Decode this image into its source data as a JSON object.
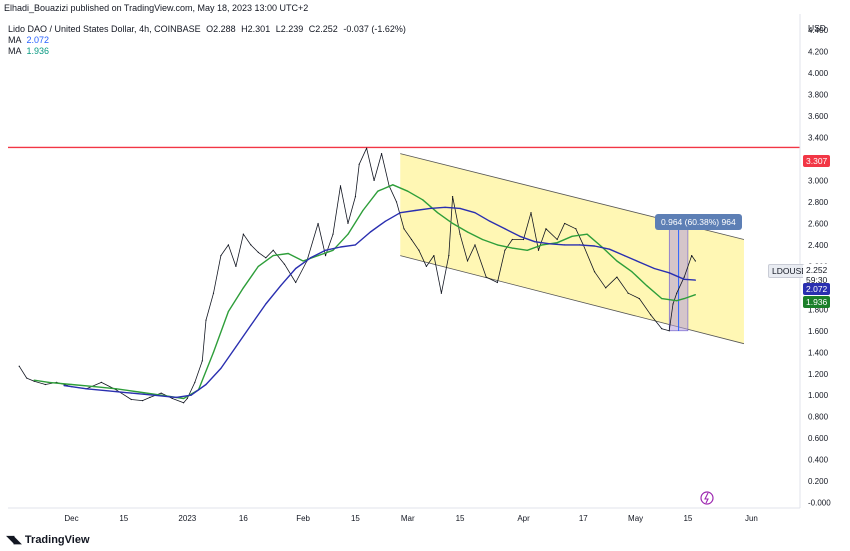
{
  "header": {
    "text": "Elhadi_Bouazizi published on TradingView.com, May 18, 2023 13:00 UTC+2"
  },
  "legend": {
    "title": "Lido DAO / United States Dollar, 4h, COINBASE",
    "open_label": "O",
    "open": "2.288",
    "high_label": "H",
    "high": "2.301",
    "low_label": "L",
    "low": "2.239",
    "close_label": "C",
    "close": "2.252",
    "change": "-0.037 (-1.62%)",
    "ma1_label": "MA",
    "ma1_value": "2.072",
    "ma2_label": "MA",
    "ma2_value": "1.936"
  },
  "price_axis": {
    "currency": "USD",
    "ticks": [
      "4.400",
      "4.200",
      "4.000",
      "3.800",
      "3.600",
      "3.400",
      "3.200",
      "3.000",
      "2.800",
      "2.600",
      "2.400",
      "2.200",
      "2.000",
      "1.800",
      "1.600",
      "1.400",
      "1.200",
      "1.000",
      "0.800",
      "0.600",
      "0.400",
      "0.200",
      "-0.000"
    ],
    "ticks_values": [
      4.4,
      4.2,
      4.0,
      3.8,
      3.6,
      3.4,
      3.2,
      3.0,
      2.8,
      2.6,
      2.4,
      2.2,
      2.0,
      1.8,
      1.6,
      1.4,
      1.2,
      1.0,
      0.8,
      0.6,
      0.4,
      0.2,
      0.0
    ]
  },
  "time_axis": {
    "ticks": [
      "Dec",
      "15",
      "2023",
      "16",
      "Feb",
      "15",
      "Mar",
      "15",
      "Apr",
      "17",
      "May",
      "15",
      "Jun"
    ],
    "tick_days": [
      0,
      14,
      31,
      46,
      62,
      76,
      90,
      104,
      121,
      137,
      151,
      165,
      182
    ]
  },
  "badges": {
    "resistance": "3.307",
    "symbol": "LDOUSD",
    "last_price": "2.252",
    "countdown": "59:30",
    "ma1": "2.072",
    "ma2": "1.936"
  },
  "measure": {
    "label": "0.964 (60.38%) 964"
  },
  "footer": {
    "brand": "TradingView"
  },
  "colors": {
    "resistance": "#f23645",
    "ma_fast": "#089981",
    "ma_fast_line": "#2e9e3a",
    "ma_slow": "#2962ff",
    "ma_slow_line": "#2a2fb0",
    "channel": "#fff176",
    "measure_box": "#b39ddb",
    "price": "#131722"
  },
  "chart_data": {
    "type": "line",
    "title": "Lido DAO / United States Dollar, 4h, COINBASE",
    "xlabel": "",
    "ylabel": "USD",
    "ylim": [
      -0.05,
      4.55
    ],
    "x_unit": "days since Dec 1, 2022",
    "resistance_level": 3.307,
    "series": [
      {
        "name": "Price",
        "x": [
          -14,
          -12,
          -10,
          -7,
          -4,
          0,
          4,
          8,
          12,
          16,
          19,
          21,
          24,
          27,
          30,
          31,
          33,
          35,
          36,
          38,
          40,
          42,
          44,
          46,
          48,
          50,
          52,
          54,
          57,
          60,
          63,
          66,
          68,
          70,
          72,
          74,
          76,
          77,
          79,
          81,
          83,
          85,
          87,
          89,
          91,
          93,
          95,
          97,
          99,
          101,
          102,
          104,
          106,
          108,
          111,
          114,
          116,
          118,
          121,
          123,
          125,
          127,
          130,
          132,
          135,
          137,
          140,
          143,
          146,
          149,
          152,
          155,
          158,
          160,
          161,
          162,
          164,
          166,
          167
        ],
        "values": [
          1.27,
          1.16,
          1.13,
          1.1,
          1.12,
          1.08,
          1.06,
          1.12,
          1.05,
          0.96,
          0.95,
          0.98,
          1.02,
          0.97,
          0.93,
          0.97,
          1.12,
          1.32,
          1.7,
          1.95,
          2.3,
          2.4,
          2.2,
          2.5,
          2.4,
          2.33,
          2.28,
          2.35,
          2.22,
          2.05,
          2.25,
          2.6,
          2.3,
          2.5,
          2.95,
          2.6,
          2.85,
          3.15,
          3.3,
          3.0,
          3.25,
          2.95,
          2.8,
          2.55,
          2.45,
          2.35,
          2.2,
          2.3,
          1.95,
          2.3,
          2.85,
          2.5,
          2.25,
          2.4,
          2.1,
          2.05,
          2.35,
          2.45,
          2.45,
          2.7,
          2.35,
          2.55,
          2.45,
          2.6,
          2.55,
          2.4,
          2.15,
          2.0,
          2.1,
          1.95,
          1.9,
          1.75,
          1.62,
          1.6,
          1.85,
          1.95,
          2.1,
          2.3,
          2.25
        ]
      },
      {
        "name": "MA",
        "x": [
          -10,
          -6,
          0,
          6,
          12,
          18,
          24,
          30,
          34,
          38,
          42,
          46,
          50,
          54,
          58,
          62,
          66,
          70,
          74,
          78,
          82,
          86,
          90,
          94,
          98,
          102,
          106,
          110,
          114,
          118,
          122,
          126,
          130,
          134,
          138,
          142,
          146,
          150,
          154,
          158,
          162,
          164,
          167
        ],
        "values": [
          1.14,
          1.12,
          1.1,
          1.08,
          1.06,
          1.03,
          1.0,
          0.97,
          1.05,
          1.4,
          1.78,
          2.0,
          2.2,
          2.3,
          2.32,
          2.25,
          2.3,
          2.35,
          2.5,
          2.72,
          2.9,
          2.96,
          2.9,
          2.82,
          2.7,
          2.6,
          2.52,
          2.45,
          2.4,
          2.37,
          2.35,
          2.4,
          2.42,
          2.48,
          2.5,
          2.38,
          2.25,
          2.15,
          2.02,
          1.9,
          1.88,
          1.9,
          1.936
        ]
      },
      {
        "name": "MA",
        "x": [
          -2,
          4,
          10,
          16,
          22,
          28,
          32,
          36,
          40,
          44,
          48,
          52,
          56,
          60,
          64,
          68,
          72,
          76,
          80,
          84,
          88,
          92,
          96,
          100,
          104,
          108,
          112,
          116,
          120,
          124,
          128,
          132,
          136,
          140,
          144,
          148,
          152,
          156,
          160,
          164,
          167
        ],
        "values": [
          1.09,
          1.06,
          1.04,
          1.02,
          1.0,
          0.98,
          1.0,
          1.1,
          1.25,
          1.45,
          1.65,
          1.85,
          2.02,
          2.18,
          2.28,
          2.35,
          2.38,
          2.4,
          2.52,
          2.62,
          2.7,
          2.72,
          2.74,
          2.75,
          2.74,
          2.7,
          2.62,
          2.55,
          2.48,
          2.43,
          2.41,
          2.4,
          2.4,
          2.39,
          2.36,
          2.3,
          2.24,
          2.18,
          2.14,
          2.08,
          2.072
        ]
      }
    ],
    "channel": {
      "upper_x": [
        88,
        180
      ],
      "upper_y": [
        3.25,
        2.45
      ],
      "lower_x": [
        88,
        180
      ],
      "lower_y": [
        2.3,
        1.48
      ]
    },
    "measure_range": {
      "x": [
        160,
        165
      ],
      "y": [
        1.6,
        2.564
      ]
    }
  }
}
